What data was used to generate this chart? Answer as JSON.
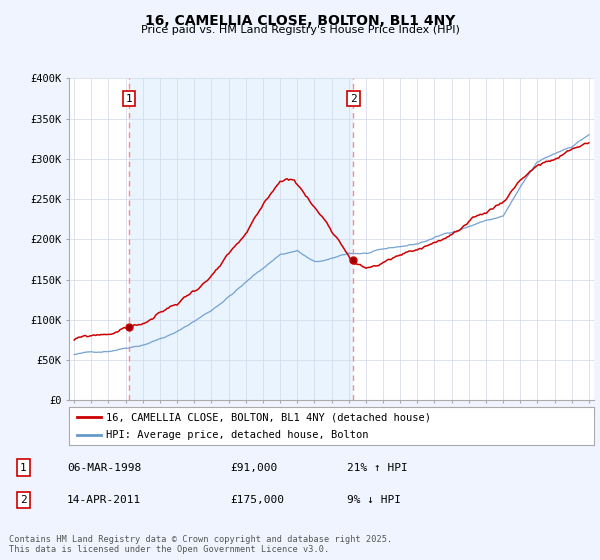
{
  "title": "16, CAMELLIA CLOSE, BOLTON, BL1 4NY",
  "subtitle": "Price paid vs. HM Land Registry's House Price Index (HPI)",
  "ylim": [
    0,
    400000
  ],
  "yticks": [
    0,
    50000,
    100000,
    150000,
    200000,
    250000,
    300000,
    350000,
    400000
  ],
  "ytick_labels": [
    "£0",
    "£50K",
    "£100K",
    "£150K",
    "£200K",
    "£250K",
    "£300K",
    "£350K",
    "£400K"
  ],
  "line_red_color": "#cc0000",
  "line_blue_color": "#6699cc",
  "vline_color": "#ff8888",
  "shade_color": "#ddeeff",
  "transaction1_year": 1998.18,
  "transaction2_year": 2011.28,
  "transaction1_price": 91000,
  "transaction2_price": 175000,
  "legend1": "16, CAMELLIA CLOSE, BOLTON, BL1 4NY (detached house)",
  "legend2": "HPI: Average price, detached house, Bolton",
  "table_row1_num": "1",
  "table_row1_date": "06-MAR-1998",
  "table_row1_price": "£91,000",
  "table_row1_hpi": "21% ↑ HPI",
  "table_row2_num": "2",
  "table_row2_date": "14-APR-2011",
  "table_row2_price": "£175,000",
  "table_row2_hpi": "9% ↓ HPI",
  "footer": "Contains HM Land Registry data © Crown copyright and database right 2025.\nThis data is licensed under the Open Government Licence v3.0.",
  "bg_color": "#f0f4ff",
  "plot_bg_color": "#ffffff",
  "grid_color": "#d0d8e8"
}
